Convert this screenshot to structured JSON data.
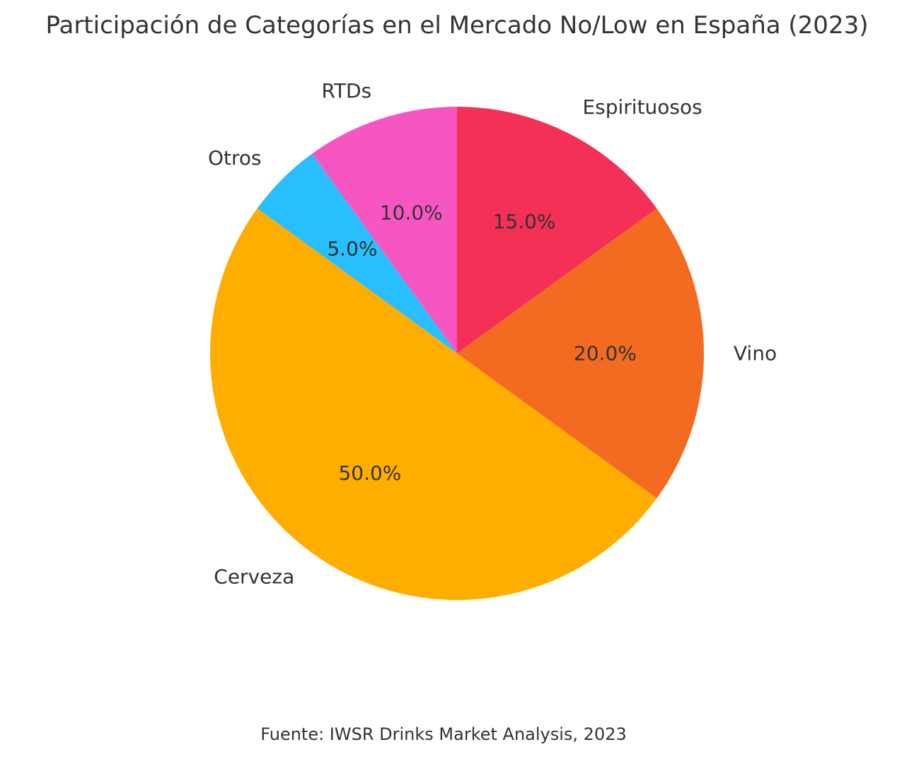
{
  "chart_data": {
    "type": "pie",
    "title": "Participación de Categorías en el Mercado No/Low en España (2023)",
    "source": "Fuente: IWSR Drinks Market Analysis, 2023",
    "direction": "counterclockwise",
    "slices": [
      {
        "label": "Cerveza",
        "value": 50.0,
        "pct_label": "50.0%",
        "color": "#ffae00"
      },
      {
        "label": "Vino",
        "value": 20.0,
        "pct_label": "20.0%",
        "color": "#f26b21"
      },
      {
        "label": "Espirituosos",
        "value": 15.0,
        "pct_label": "15.0%",
        "color": "#f43056"
      },
      {
        "label": "RTDs",
        "value": 10.0,
        "pct_label": "10.0%",
        "color": "#f756c2"
      },
      {
        "label": "Otros",
        "value": 5.0,
        "pct_label": "5.0%",
        "color": "#29befe"
      }
    ]
  }
}
